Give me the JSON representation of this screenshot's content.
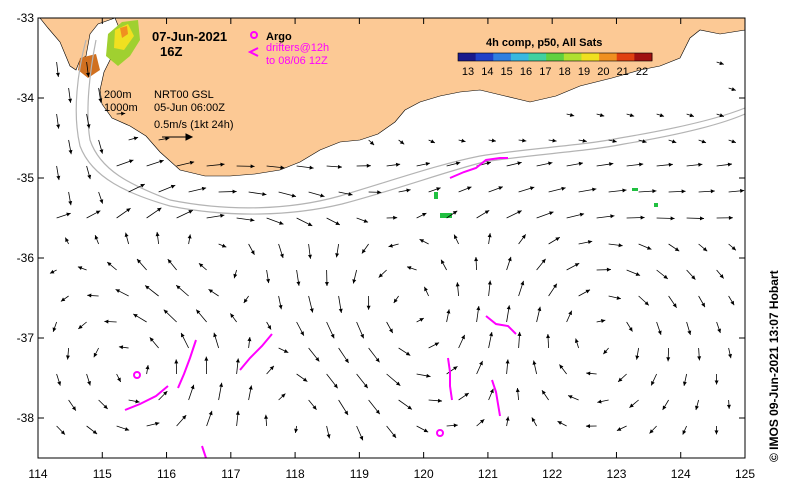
{
  "title": {
    "date": "07-Jun-2021",
    "hour": "16Z"
  },
  "legend_argo": {
    "argo_label": "Argo",
    "drifters_line1": "drifters@12h",
    "drifters_line2": "to 08/06 12Z"
  },
  "product": {
    "isobath_200": "200m",
    "isobath_1000": "1000m",
    "source_line1": "NRT00 GSL",
    "source_line2": "05-Jun 06:00Z",
    "scale_text": "0.5m/s (1kt 24h)"
  },
  "colorbar": {
    "title": "4h comp, p50, All Sats",
    "ticks": [
      "13",
      "14",
      "15",
      "16",
      "17",
      "18",
      "19",
      "20",
      "21",
      "22"
    ],
    "colors": [
      "#1a1a8c",
      "#2040c8",
      "#2f7fe0",
      "#38b8e0",
      "#40d0a0",
      "#60d040",
      "#b0e030",
      "#f0e020",
      "#f09020",
      "#e04010",
      "#a01010"
    ]
  },
  "axes": {
    "lon_ticks": [
      "114",
      "115",
      "116",
      "117",
      "118",
      "119",
      "120",
      "121",
      "122",
      "123",
      "124",
      "125"
    ],
    "lat_ticks": [
      "-33",
      "-34",
      "-35",
      "-36",
      "-37",
      "-38"
    ]
  },
  "credit": "© IMOS 09-Jun-2021 13:07 Hobart",
  "colors": {
    "land": "#fcc995",
    "argo": "#ff00ff",
    "isobath": "#b4b4b4"
  }
}
